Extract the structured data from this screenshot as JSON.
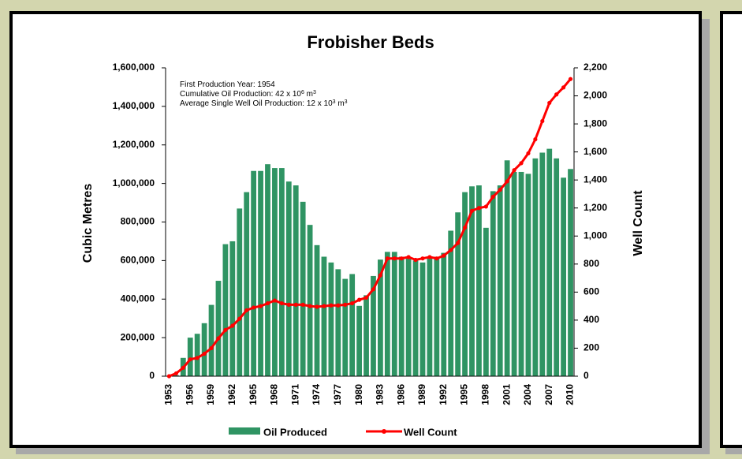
{
  "chart_data": {
    "type": "bar-line",
    "title": "Frobisher Beds",
    "ylabel": "Cubic Metres",
    "y2label": "Well Count",
    "annotations": [
      [
        "First Production Year: 1954"
      ],
      [
        "Cumulative Oil Production: 42 x 10",
        "6",
        " m",
        "3"
      ],
      [
        "Average Single Well Oil Production: 12 x 10",
        "3",
        " m",
        "3"
      ]
    ],
    "categories": [
      "1953",
      null,
      null,
      "1956",
      null,
      null,
      "1959",
      null,
      null,
      "1962",
      null,
      null,
      "1965",
      null,
      null,
      "1968",
      null,
      null,
      "1971",
      null,
      null,
      "1974",
      null,
      null,
      "1977",
      null,
      null,
      "1980",
      null,
      null,
      "1983",
      null,
      null,
      "1986",
      null,
      null,
      "1989",
      null,
      null,
      "1992",
      null,
      null,
      "1995",
      null,
      null,
      "1998",
      null,
      null,
      "2001",
      null,
      null,
      "2004",
      null,
      null,
      "2007",
      null,
      null,
      "2010"
    ],
    "series": [
      {
        "name": "Oil Produced",
        "type": "bar",
        "color": "#2f9463",
        "values": [
          0,
          5000,
          95000,
          200000,
          220000,
          275000,
          370000,
          495000,
          685000,
          700000,
          870000,
          955000,
          1065000,
          1065000,
          1100000,
          1080000,
          1080000,
          1010000,
          990000,
          905000,
          785000,
          680000,
          620000,
          590000,
          555000,
          505000,
          530000,
          365000,
          420000,
          520000,
          605000,
          645000,
          645000,
          620000,
          615000,
          600000,
          590000,
          615000,
          620000,
          640000,
          755000,
          850000,
          955000,
          985000,
          990000,
          770000,
          960000,
          990000,
          1120000,
          1060000,
          1060000,
          1050000,
          1130000,
          1160000,
          1180000,
          1130000,
          1030000,
          1075000
        ]
      },
      {
        "name": "Well Count",
        "type": "line",
        "axis": "y2",
        "color": "#ff0000",
        "values": [
          0,
          20,
          60,
          120,
          130,
          160,
          200,
          270,
          330,
          360,
          410,
          470,
          490,
          500,
          520,
          540,
          520,
          510,
          510,
          510,
          500,
          495,
          500,
          505,
          505,
          510,
          520,
          545,
          560,
          620,
          720,
          840,
          840,
          840,
          850,
          830,
          840,
          850,
          840,
          860,
          900,
          950,
          1060,
          1180,
          1200,
          1210,
          1280,
          1330,
          1390,
          1470,
          1520,
          1590,
          1690,
          1820,
          1950,
          2010,
          2060,
          2120
        ]
      }
    ],
    "ylim": [
      0,
      1600000
    ],
    "yticks": [
      0,
      {
        "value": 200000,
        "label": "200,000"
      },
      {
        "value": 400000,
        "label": "400,000"
      },
      {
        "value": 600000,
        "label": "600,000"
      },
      {
        "value": 800000,
        "label": "800,000"
      },
      {
        "value": 1000000,
        "label": "1,000,000"
      },
      {
        "value": 1200000,
        "label": "1,200,000"
      },
      {
        "value": 1400000,
        "label": "1,400,000"
      },
      {
        "value": 1600000,
        "label": "1,600,000"
      }
    ],
    "y2lim": [
      0,
      2200
    ],
    "y2ticks": [
      0,
      200,
      400,
      600,
      800,
      {
        "value": 1000,
        "label": "1,000"
      },
      {
        "value": 1200,
        "label": "1,200"
      },
      {
        "value": 1400,
        "label": "1,400"
      },
      {
        "value": 1600,
        "label": "1,600"
      },
      {
        "value": 1800,
        "label": "1,800"
      },
      {
        "value": 2000,
        "label": "2,000"
      },
      {
        "value": 2200,
        "label": "2,200"
      }
    ],
    "legend": "bottom"
  }
}
